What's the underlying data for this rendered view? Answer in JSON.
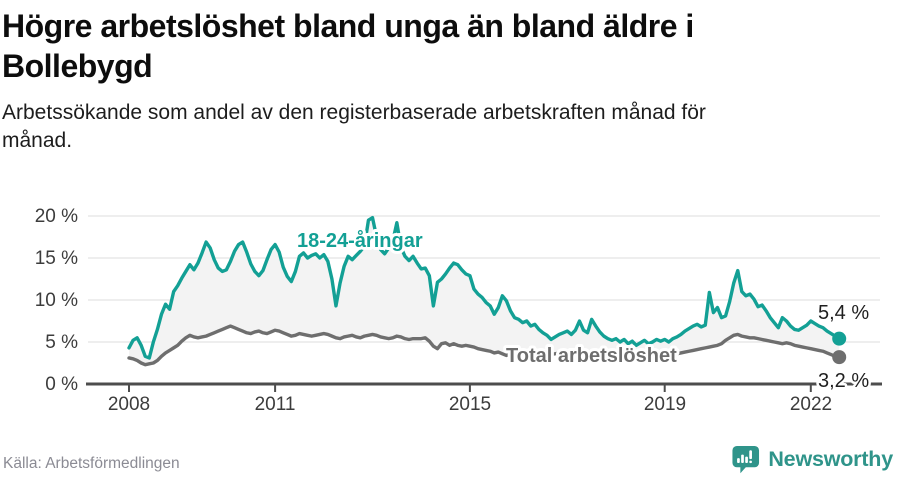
{
  "header": {
    "title_line1": "Högre arbetslöshet bland unga än bland äldre i",
    "title_line2": "Bollebygd",
    "subtitle_line1": "Arbetssökande som andel av den registerbaserade arbetskraften månad för",
    "subtitle_line2": "månad."
  },
  "chart_data": {
    "type": "line",
    "title": "Högre arbetslöshet bland unga än bland äldre i Bollebygd",
    "subtitle": "Arbetssökande som andel av den registerbaserade arbetskraften månad för månad.",
    "x_unit": "month",
    "x_start_year": 2008,
    "x_end": "2022-08",
    "ylim": [
      0,
      20
    ],
    "yticks": [
      0,
      5,
      10,
      15,
      20
    ],
    "ytick_labels": [
      "0 %",
      "5 %",
      "10 %",
      "15 %",
      "20 %"
    ],
    "xticks": [
      2008,
      2011,
      2015,
      2019,
      2022
    ],
    "xtick_labels": [
      "2008",
      "2011",
      "2015",
      "2019",
      "2022"
    ],
    "grid": true,
    "legend_position": "inline-labels",
    "style": {
      "grid_color": "#dcdcdc",
      "axis_color": "#4d4d4d",
      "fill_between": "#f3f3f3",
      "value_label_color": "#1f1f1f"
    },
    "series": [
      {
        "name": "18-24-åringar",
        "color": "#13a095",
        "end_label": "5,4 %",
        "end_value": 5.4,
        "values": [
          4.3,
          5.2,
          5.5,
          4.6,
          3.3,
          3.1,
          5.0,
          6.5,
          8.3,
          9.5,
          8.9,
          11.0,
          11.7,
          12.6,
          13.4,
          14.2,
          13.6,
          14.4,
          15.6,
          16.9,
          16.2,
          14.8,
          13.8,
          13.4,
          13.6,
          14.6,
          15.8,
          16.6,
          16.9,
          15.7,
          14.3,
          13.4,
          12.9,
          13.5,
          14.8,
          16.0,
          16.6,
          15.7,
          13.9,
          12.8,
          12.2,
          13.4,
          15.2,
          15.6,
          15.0,
          15.3,
          15.5,
          15.0,
          15.4,
          14.6,
          12.5,
          9.3,
          12.0,
          14.0,
          15.2,
          14.8,
          15.3,
          15.8,
          16.4,
          19.5,
          19.8,
          17.5,
          16.0,
          15.5,
          16.2,
          17.0,
          19.2,
          16.3,
          15.2,
          14.7,
          15.2,
          14.4,
          13.7,
          13.8,
          12.9,
          9.3,
          12.1,
          12.5,
          13.1,
          13.8,
          14.4,
          14.2,
          13.6,
          13.1,
          12.9,
          11.3,
          10.7,
          10.3,
          9.7,
          9.3,
          8.3,
          9.1,
          10.5,
          9.9,
          8.7,
          7.9,
          7.7,
          7.3,
          7.5,
          6.9,
          7.1,
          6.5,
          6.1,
          5.8,
          5.3,
          5.6,
          5.9,
          6.1,
          6.3,
          5.9,
          6.4,
          7.5,
          6.4,
          6.1,
          7.7,
          6.9,
          6.2,
          5.7,
          5.4,
          5.2,
          5.4,
          5.0,
          5.3,
          4.8,
          5.1,
          4.6,
          4.9,
          5.2,
          4.8,
          5.0,
          5.3,
          5.1,
          5.3,
          5.0,
          5.4,
          5.6,
          5.9,
          6.3,
          6.6,
          6.9,
          7.1,
          6.8,
          7.0,
          10.9,
          8.5,
          9.1,
          7.9,
          8.1,
          9.8,
          12.0,
          13.5,
          11.0,
          10.5,
          10.7,
          10.1,
          9.2,
          9.4,
          8.7,
          7.9,
          7.3,
          6.7,
          7.9,
          7.5,
          6.9,
          6.5,
          6.4,
          6.7,
          7.0,
          7.5,
          7.2,
          6.9,
          6.7,
          6.3,
          6.0,
          5.7,
          5.4
        ]
      },
      {
        "name": "Total arbetslöshet",
        "color": "#6e6e6e",
        "end_label": "3,2 %",
        "end_value": 3.2,
        "values": [
          3.1,
          3.0,
          2.8,
          2.5,
          2.3,
          2.4,
          2.5,
          2.8,
          3.3,
          3.7,
          4.0,
          4.3,
          4.6,
          5.1,
          5.5,
          5.8,
          5.6,
          5.5,
          5.6,
          5.7,
          5.9,
          6.1,
          6.3,
          6.5,
          6.7,
          6.9,
          6.7,
          6.5,
          6.3,
          6.1,
          6.0,
          6.2,
          6.3,
          6.1,
          6.0,
          6.2,
          6.4,
          6.3,
          6.1,
          5.9,
          5.7,
          5.8,
          6.0,
          5.9,
          5.8,
          5.7,
          5.8,
          5.9,
          6.0,
          5.9,
          5.7,
          5.5,
          5.4,
          5.6,
          5.7,
          5.8,
          5.6,
          5.5,
          5.7,
          5.8,
          5.9,
          5.8,
          5.6,
          5.5,
          5.4,
          5.5,
          5.7,
          5.6,
          5.4,
          5.3,
          5.4,
          5.4,
          5.4,
          5.5,
          5.1,
          4.5,
          4.2,
          4.8,
          4.9,
          4.6,
          4.8,
          4.6,
          4.5,
          4.6,
          4.5,
          4.4,
          4.2,
          4.1,
          4.0,
          3.9,
          3.7,
          3.8,
          3.6,
          3.4,
          3.6,
          3.8,
          3.5,
          3.4,
          3.5,
          3.4,
          3.3,
          3.4,
          3.5,
          3.6,
          3.5,
          3.6,
          3.7,
          3.8,
          3.9,
          3.8,
          3.9,
          4.0,
          3.9,
          3.8,
          3.9,
          3.8,
          3.7,
          3.6,
          3.7,
          3.6,
          3.5,
          3.6,
          3.5,
          3.4,
          3.5,
          3.4,
          3.3,
          3.4,
          3.3,
          3.2,
          3.3,
          3.4,
          3.4,
          3.3,
          3.5,
          3.6,
          3.7,
          3.8,
          3.9,
          4.0,
          4.1,
          4.2,
          4.3,
          4.4,
          4.5,
          4.6,
          4.8,
          5.2,
          5.5,
          5.8,
          5.9,
          5.7,
          5.6,
          5.5,
          5.5,
          5.4,
          5.3,
          5.2,
          5.1,
          5.0,
          4.9,
          4.8,
          4.9,
          4.8,
          4.6,
          4.5,
          4.4,
          4.3,
          4.2,
          4.1,
          4.0,
          3.9,
          3.7,
          3.5,
          3.3,
          3.2
        ]
      }
    ]
  },
  "footer": {
    "source": "Källa: Arbetsförmedlingen",
    "brand": "Newsworthy",
    "brand_color": "#2f948a"
  }
}
